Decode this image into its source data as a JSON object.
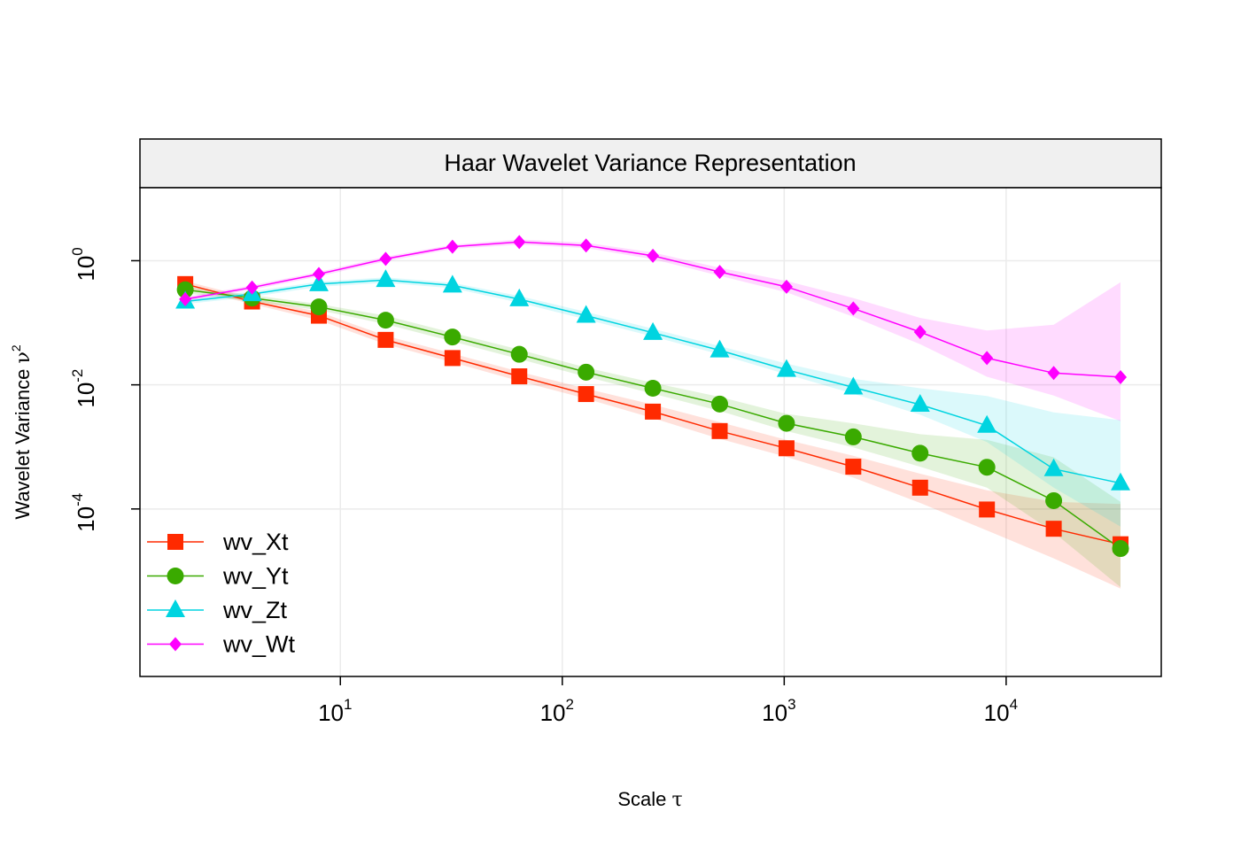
{
  "chart_data": {
    "type": "line",
    "title": "Haar Wavelet Variance Representation",
    "xlabel": {
      "text": "Scale ",
      "symbol": "τ"
    },
    "ylabel": {
      "text": "Wavelet Variance ",
      "symbol": "ν",
      "sup": "2"
    },
    "x_scale": "log10",
    "y_scale": "log10",
    "xlim": [
      1.25,
      50000
    ],
    "ylim": [
      2e-07,
      15
    ],
    "x_ticks": [
      {
        "base": "10",
        "exp": "1"
      },
      {
        "base": "10",
        "exp": "2"
      },
      {
        "base": "10",
        "exp": "3"
      },
      {
        "base": "10",
        "exp": "4"
      }
    ],
    "y_ticks": [
      {
        "base": "10",
        "exp": "0"
      },
      {
        "base": "10",
        "exp": "-2"
      },
      {
        "base": "10",
        "exp": "-4"
      }
    ],
    "x": [
      2,
      4,
      8,
      16,
      32,
      64,
      128,
      256,
      512,
      1024,
      2048,
      4096,
      8192,
      16384,
      32768
    ],
    "series": [
      {
        "name": "wv_Xt",
        "color": "#ff2a00",
        "marker": "square",
        "values": [
          0.42,
          0.22,
          0.13,
          0.053,
          0.027,
          0.0137,
          0.0071,
          0.0037,
          0.0018,
          0.00095,
          0.00048,
          0.00022,
          9.8e-05,
          4.8e-05,
          2.7e-05
        ],
        "ci_lower": [
          0.37,
          0.2,
          0.11,
          0.045,
          0.023,
          0.0115,
          0.006,
          0.0029,
          0.00135,
          0.00069,
          0.00032,
          0.000125,
          4.5e-05,
          1.6e-05,
          5.2e-06
        ],
        "ci_upper": [
          0.47,
          0.25,
          0.15,
          0.062,
          0.032,
          0.0163,
          0.0087,
          0.0048,
          0.0025,
          0.0013,
          0.00072,
          0.00037,
          0.0002,
          0.00013,
          0.00012
        ]
      },
      {
        "name": "wv_Yt",
        "color": "#3aaa00",
        "marker": "circle",
        "values": [
          0.34,
          0.25,
          0.18,
          0.11,
          0.059,
          0.031,
          0.016,
          0.0088,
          0.0049,
          0.0024,
          0.00145,
          0.00079,
          0.00047,
          0.000136,
          2.3e-05
        ],
        "ci_lower": [
          0.3,
          0.22,
          0.16,
          0.095,
          0.05,
          0.026,
          0.0135,
          0.0072,
          0.0038,
          0.0018,
          0.00098,
          0.00048,
          0.00022,
          4.2e-05,
          5.5e-06
        ],
        "ci_upper": [
          0.38,
          0.28,
          0.2,
          0.13,
          0.069,
          0.037,
          0.019,
          0.0108,
          0.0064,
          0.0034,
          0.0024,
          0.0016,
          0.0013,
          0.00068,
          0.00013
        ]
      },
      {
        "name": "wv_Zt",
        "color": "#00d4e0",
        "marker": "triangle",
        "values": [
          0.22,
          0.29,
          0.42,
          0.49,
          0.4,
          0.24,
          0.13,
          0.069,
          0.036,
          0.0175,
          0.0091,
          0.0048,
          0.0022,
          0.00044,
          0.00026
        ],
        "ci_lower": [
          0.2,
          0.26,
          0.38,
          0.44,
          0.36,
          0.21,
          0.113,
          0.06,
          0.031,
          0.0148,
          0.0072,
          0.0033,
          0.0012,
          0.00022,
          5.2e-05
        ],
        "ci_upper": [
          0.24,
          0.32,
          0.46,
          0.54,
          0.44,
          0.27,
          0.15,
          0.08,
          0.042,
          0.022,
          0.0125,
          0.0088,
          0.0066,
          0.0036,
          0.0027
        ]
      },
      {
        "name": "wv_Wt",
        "color": "#ff00ff",
        "marker": "diamond",
        "values": [
          0.24,
          0.37,
          0.61,
          1.07,
          1.68,
          2.0,
          1.76,
          1.2,
          0.66,
          0.38,
          0.17,
          0.071,
          0.027,
          0.0155,
          0.0133
        ],
        "ci_lower": [
          0.22,
          0.34,
          0.56,
          0.98,
          1.55,
          1.82,
          1.6,
          1.06,
          0.57,
          0.31,
          0.125,
          0.045,
          0.0135,
          0.0067,
          0.0026
        ],
        "ci_upper": [
          0.26,
          0.4,
          0.66,
          1.16,
          1.81,
          2.2,
          1.95,
          1.36,
          0.77,
          0.47,
          0.25,
          0.12,
          0.075,
          0.093,
          0.45
        ]
      }
    ]
  }
}
